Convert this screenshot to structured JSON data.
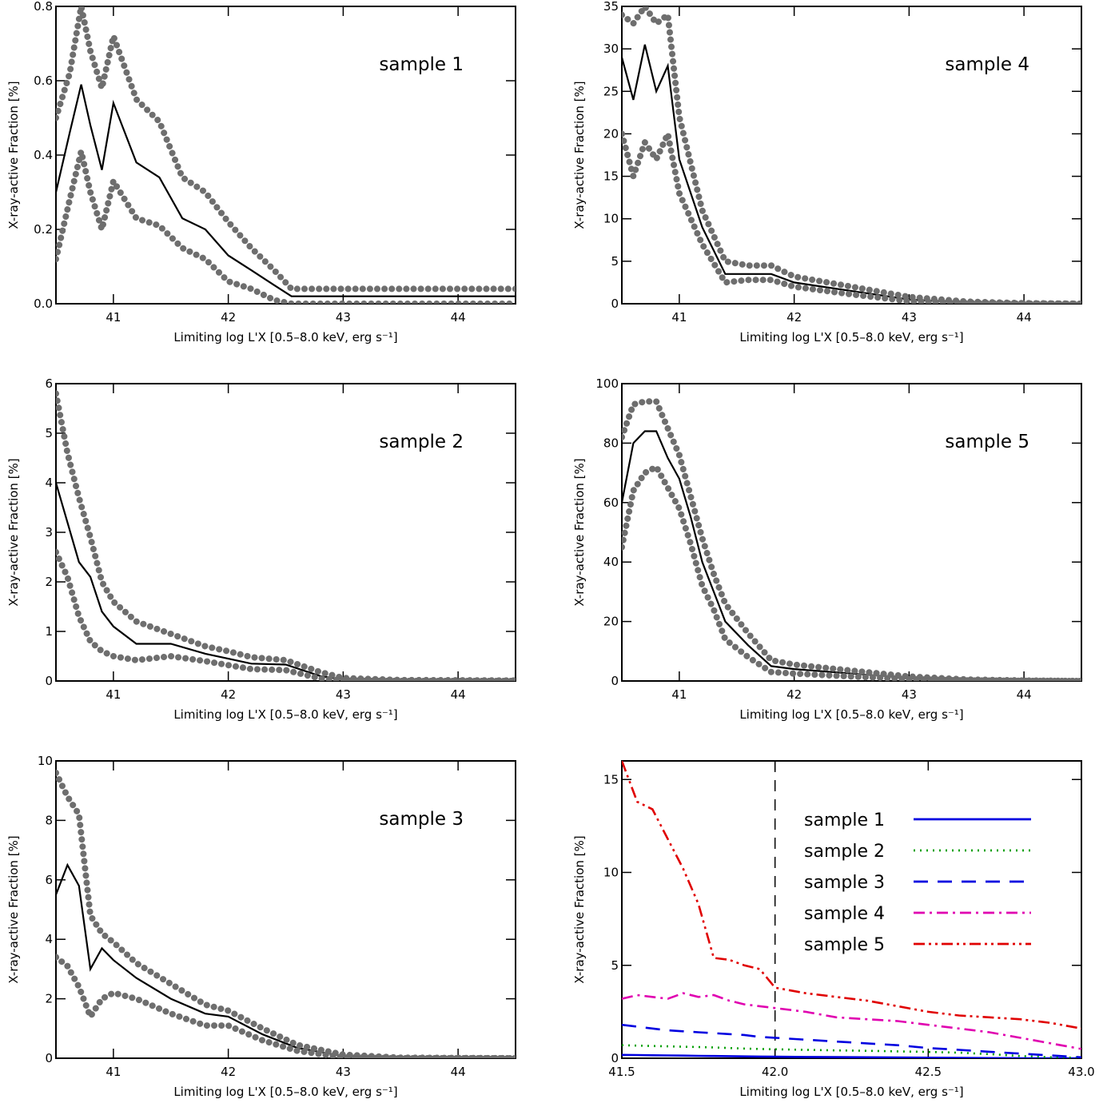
{
  "chart_data": [
    {
      "type": "line",
      "panel_label": "sample 1",
      "xlabel": "Limiting log L'X [0.5–8.0 keV, erg s⁻¹]",
      "ylabel": "X-ray-active Fraction [%]",
      "xlim": [
        40.5,
        44.5
      ],
      "ylim": [
        0,
        0.8
      ],
      "xticks": [
        41,
        42,
        43,
        44
      ],
      "xtick_labels": [
        "41",
        "42",
        "43",
        "44"
      ],
      "yticks": [
        0,
        0.2,
        0.4,
        0.6,
        0.8
      ],
      "ytick_labels": [
        "0.0",
        "0.2",
        "0.4",
        "0.6",
        "0.8"
      ],
      "x": [
        40.5,
        40.62,
        40.72,
        40.8,
        40.9,
        41.0,
        41.2,
        41.4,
        41.6,
        41.8,
        42.0,
        42.2,
        42.4,
        42.55,
        44.5
      ],
      "series": [
        {
          "style": "solid-black",
          "y": [
            0.3,
            0.46,
            0.59,
            0.48,
            0.36,
            0.54,
            0.38,
            0.34,
            0.23,
            0.2,
            0.13,
            0.09,
            0.05,
            0.02,
            0.02
          ]
        },
        {
          "style": "dotted-gray",
          "y": [
            0.5,
            0.62,
            0.8,
            0.68,
            0.58,
            0.72,
            0.55,
            0.49,
            0.34,
            0.3,
            0.22,
            0.15,
            0.09,
            0.04,
            0.04
          ]
        },
        {
          "style": "dotted-gray",
          "y": [
            0.12,
            0.28,
            0.41,
            0.3,
            0.2,
            0.33,
            0.23,
            0.21,
            0.15,
            0.12,
            0.06,
            0.04,
            0.01,
            0.0,
            0.0
          ]
        }
      ]
    },
    {
      "type": "line",
      "panel_label": "sample 2",
      "xlabel": "Limiting log L'X [0.5–8.0 keV, erg s⁻¹]",
      "ylabel": "X-ray-active Fraction [%]",
      "xlim": [
        40.5,
        44.5
      ],
      "ylim": [
        0,
        6
      ],
      "xticks": [
        41,
        42,
        43,
        44
      ],
      "xtick_labels": [
        "41",
        "42",
        "43",
        "44"
      ],
      "yticks": [
        0,
        1,
        2,
        3,
        4,
        5,
        6
      ],
      "ytick_labels": [
        "0",
        "1",
        "2",
        "3",
        "4",
        "5",
        "6"
      ],
      "x": [
        40.5,
        40.6,
        40.7,
        40.8,
        40.9,
        41.0,
        41.2,
        41.5,
        41.8,
        42.0,
        42.2,
        42.5,
        42.8,
        43.0,
        43.5,
        44.5
      ],
      "series": [
        {
          "style": "solid-black",
          "y": [
            4.0,
            3.2,
            2.4,
            2.1,
            1.4,
            1.1,
            0.75,
            0.75,
            0.55,
            0.45,
            0.35,
            0.33,
            0.1,
            0.03,
            0.01,
            0.0
          ]
        },
        {
          "style": "dotted-gray",
          "y": [
            5.8,
            4.6,
            3.7,
            2.9,
            2.0,
            1.6,
            1.2,
            0.95,
            0.7,
            0.6,
            0.48,
            0.42,
            0.18,
            0.06,
            0.02,
            0.01
          ]
        },
        {
          "style": "dotted-gray",
          "y": [
            2.6,
            2.1,
            1.3,
            0.8,
            0.6,
            0.5,
            0.42,
            0.5,
            0.4,
            0.32,
            0.24,
            0.22,
            0.05,
            0.01,
            0.0,
            0.0
          ]
        }
      ]
    },
    {
      "type": "line",
      "panel_label": "sample 3",
      "xlabel": "Limiting log L'X [0.5–8.0 keV, erg s⁻¹]",
      "ylabel": "X-ray-active Fraction [%]",
      "xlim": [
        40.5,
        44.5
      ],
      "ylim": [
        0,
        10
      ],
      "xticks": [
        41,
        42,
        43,
        44
      ],
      "xtick_labels": [
        "41",
        "42",
        "43",
        "44"
      ],
      "yticks": [
        0,
        2,
        4,
        6,
        8,
        10
      ],
      "ytick_labels": [
        "0",
        "2",
        "4",
        "6",
        "8",
        "10"
      ],
      "x": [
        40.5,
        40.6,
        40.7,
        40.8,
        40.9,
        41.0,
        41.2,
        41.5,
        41.8,
        42.0,
        42.3,
        42.6,
        43.0,
        43.5,
        44.5
      ],
      "series": [
        {
          "style": "solid-black",
          "y": [
            5.5,
            6.5,
            5.8,
            3.0,
            3.7,
            3.3,
            2.7,
            2.0,
            1.5,
            1.4,
            0.8,
            0.35,
            0.07,
            0.01,
            0.0
          ]
        },
        {
          "style": "dotted-gray",
          "y": [
            9.6,
            8.8,
            8.2,
            4.8,
            4.2,
            3.9,
            3.2,
            2.5,
            1.8,
            1.6,
            1.0,
            0.45,
            0.12,
            0.02,
            0.0
          ]
        },
        {
          "style": "dotted-gray",
          "y": [
            3.4,
            3.1,
            2.4,
            1.4,
            2.0,
            2.2,
            2.0,
            1.5,
            1.1,
            1.1,
            0.6,
            0.25,
            0.03,
            0.0,
            0.0
          ]
        }
      ]
    },
    {
      "type": "line",
      "panel_label": "sample 4",
      "xlabel": "Limiting log L'X [0.5–8.0 keV, erg s⁻¹]",
      "ylabel": "X-ray-active Fraction [%]",
      "xlim": [
        40.5,
        44.5
      ],
      "ylim": [
        0,
        35
      ],
      "xticks": [
        41,
        42,
        43,
        44
      ],
      "xtick_labels": [
        "41",
        "42",
        "43",
        "44"
      ],
      "yticks": [
        0,
        5,
        10,
        15,
        20,
        25,
        30,
        35
      ],
      "ytick_labels": [
        "0",
        "5",
        "10",
        "15",
        "20",
        "25",
        "30",
        "35"
      ],
      "x": [
        40.5,
        40.6,
        40.7,
        40.8,
        40.9,
        41.0,
        41.2,
        41.4,
        41.6,
        41.8,
        42.0,
        42.5,
        43.0,
        43.5,
        44.0,
        44.5
      ],
      "series": [
        {
          "style": "solid-black",
          "y": [
            29.0,
            24.0,
            30.5,
            25.0,
            28.0,
            17.0,
            9.0,
            3.5,
            3.5,
            3.5,
            2.5,
            1.5,
            0.5,
            0.15,
            0.05,
            0.0
          ]
        },
        {
          "style": "dotted-gray",
          "y": [
            34.0,
            33.0,
            35.0,
            33.0,
            34.0,
            22.0,
            11.0,
            5.0,
            4.5,
            4.5,
            3.2,
            2.0,
            0.8,
            0.25,
            0.07,
            0.0
          ]
        },
        {
          "style": "dotted-gray",
          "y": [
            20.0,
            15.0,
            19.0,
            17.0,
            20.0,
            13.0,
            7.0,
            2.5,
            2.8,
            2.8,
            2.0,
            1.1,
            0.3,
            0.08,
            0.02,
            0.0
          ]
        }
      ]
    },
    {
      "type": "line",
      "panel_label": "sample 5",
      "xlabel": "Limiting log L'X [0.5–8.0 keV, erg s⁻¹]",
      "ylabel": "X-ray-active Fraction [%]",
      "xlim": [
        40.5,
        44.5
      ],
      "ylim": [
        0,
        100
      ],
      "xticks": [
        41,
        42,
        43,
        44
      ],
      "xtick_labels": [
        "41",
        "42",
        "43",
        "44"
      ],
      "yticks": [
        0,
        20,
        40,
        60,
        80,
        100
      ],
      "ytick_labels": [
        "0",
        "20",
        "40",
        "60",
        "80",
        "100"
      ],
      "x": [
        40.5,
        40.6,
        40.7,
        40.8,
        40.9,
        41.0,
        41.1,
        41.2,
        41.3,
        41.4,
        41.6,
        41.8,
        42.0,
        42.5,
        43.0,
        43.5,
        44.0,
        44.5
      ],
      "series": [
        {
          "style": "solid-black",
          "y": [
            60.0,
            80.0,
            84.0,
            84.0,
            75.0,
            68.0,
            55.0,
            40.0,
            30.0,
            20.0,
            12.0,
            5.0,
            4.0,
            2.5,
            1.0,
            0.3,
            0.1,
            0.0
          ]
        },
        {
          "style": "dotted-gray",
          "y": [
            82.0,
            93.0,
            94.0,
            94.0,
            85.0,
            76.0,
            62.0,
            48.0,
            36.0,
            26.0,
            16.0,
            7.0,
            5.5,
            3.5,
            1.5,
            0.5,
            0.15,
            0.0
          ]
        },
        {
          "style": "dotted-gray",
          "y": [
            45.0,
            64.0,
            70.0,
            72.0,
            65.0,
            58.0,
            46.0,
            32.0,
            24.0,
            14.0,
            8.0,
            3.0,
            2.5,
            1.5,
            0.6,
            0.2,
            0.05,
            0.0
          ]
        }
      ]
    },
    {
      "type": "line",
      "xlabel": "Limiting log L'X [0.5–8.0 keV, erg s⁻¹]",
      "ylabel": "X-ray-active Fraction [%]",
      "xlim": [
        41.5,
        43.0
      ],
      "ylim": [
        0,
        16
      ],
      "xticks": [
        41.5,
        42.0,
        42.5,
        43.0
      ],
      "xtick_labels": [
        "41.5",
        "42.0",
        "42.5",
        "43.0"
      ],
      "yticks": [
        0,
        5,
        10,
        15
      ],
      "ytick_labels": [
        "0",
        "5",
        "10",
        "15"
      ],
      "vline_x": 42.0,
      "legend": "inside-right",
      "x": [
        41.5,
        41.55,
        41.6,
        41.65,
        41.7,
        41.75,
        41.8,
        41.85,
        41.9,
        41.95,
        42.0,
        42.1,
        42.2,
        42.3,
        42.4,
        42.5,
        42.6,
        42.7,
        42.8,
        42.9,
        43.0
      ],
      "series": [
        {
          "name": "sample 1",
          "color": "#0000e0",
          "dash": "solid",
          "y": [
            0.18,
            0.17,
            0.16,
            0.15,
            0.14,
            0.13,
            0.12,
            0.11,
            0.1,
            0.09,
            0.08,
            0.07,
            0.06,
            0.05,
            0.04,
            0.03,
            0.02,
            0.01,
            0.0,
            0.0,
            0.0
          ]
        },
        {
          "name": "sample 2",
          "color": "#00a000",
          "dash": "dotted",
          "y": [
            0.7,
            0.68,
            0.66,
            0.64,
            0.62,
            0.6,
            0.58,
            0.55,
            0.52,
            0.5,
            0.48,
            0.45,
            0.42,
            0.4,
            0.37,
            0.34,
            0.3,
            0.22,
            0.12,
            0.05,
            0.02
          ]
        },
        {
          "name": "sample 3",
          "color": "#0000e0",
          "dash": "dashed",
          "y": [
            1.8,
            1.7,
            1.6,
            1.5,
            1.45,
            1.4,
            1.35,
            1.3,
            1.25,
            1.15,
            1.1,
            1.0,
            0.9,
            0.8,
            0.7,
            0.55,
            0.45,
            0.35,
            0.25,
            0.15,
            0.05
          ]
        },
        {
          "name": "sample 4",
          "color": "#e000b0",
          "dash": "dash-dot",
          "y": [
            3.2,
            3.4,
            3.3,
            3.2,
            3.5,
            3.3,
            3.4,
            3.1,
            2.9,
            2.8,
            2.7,
            2.5,
            2.2,
            2.1,
            2.0,
            1.8,
            1.6,
            1.4,
            1.1,
            0.8,
            0.5
          ]
        },
        {
          "name": "sample 5",
          "color": "#e00000",
          "dash": "dash-dot-dot",
          "y": [
            16.0,
            13.8,
            13.4,
            11.8,
            10.2,
            8.3,
            5.4,
            5.3,
            5.0,
            4.8,
            3.8,
            3.5,
            3.3,
            3.1,
            2.8,
            2.5,
            2.3,
            2.2,
            2.1,
            1.9,
            1.6
          ]
        }
      ]
    }
  ]
}
